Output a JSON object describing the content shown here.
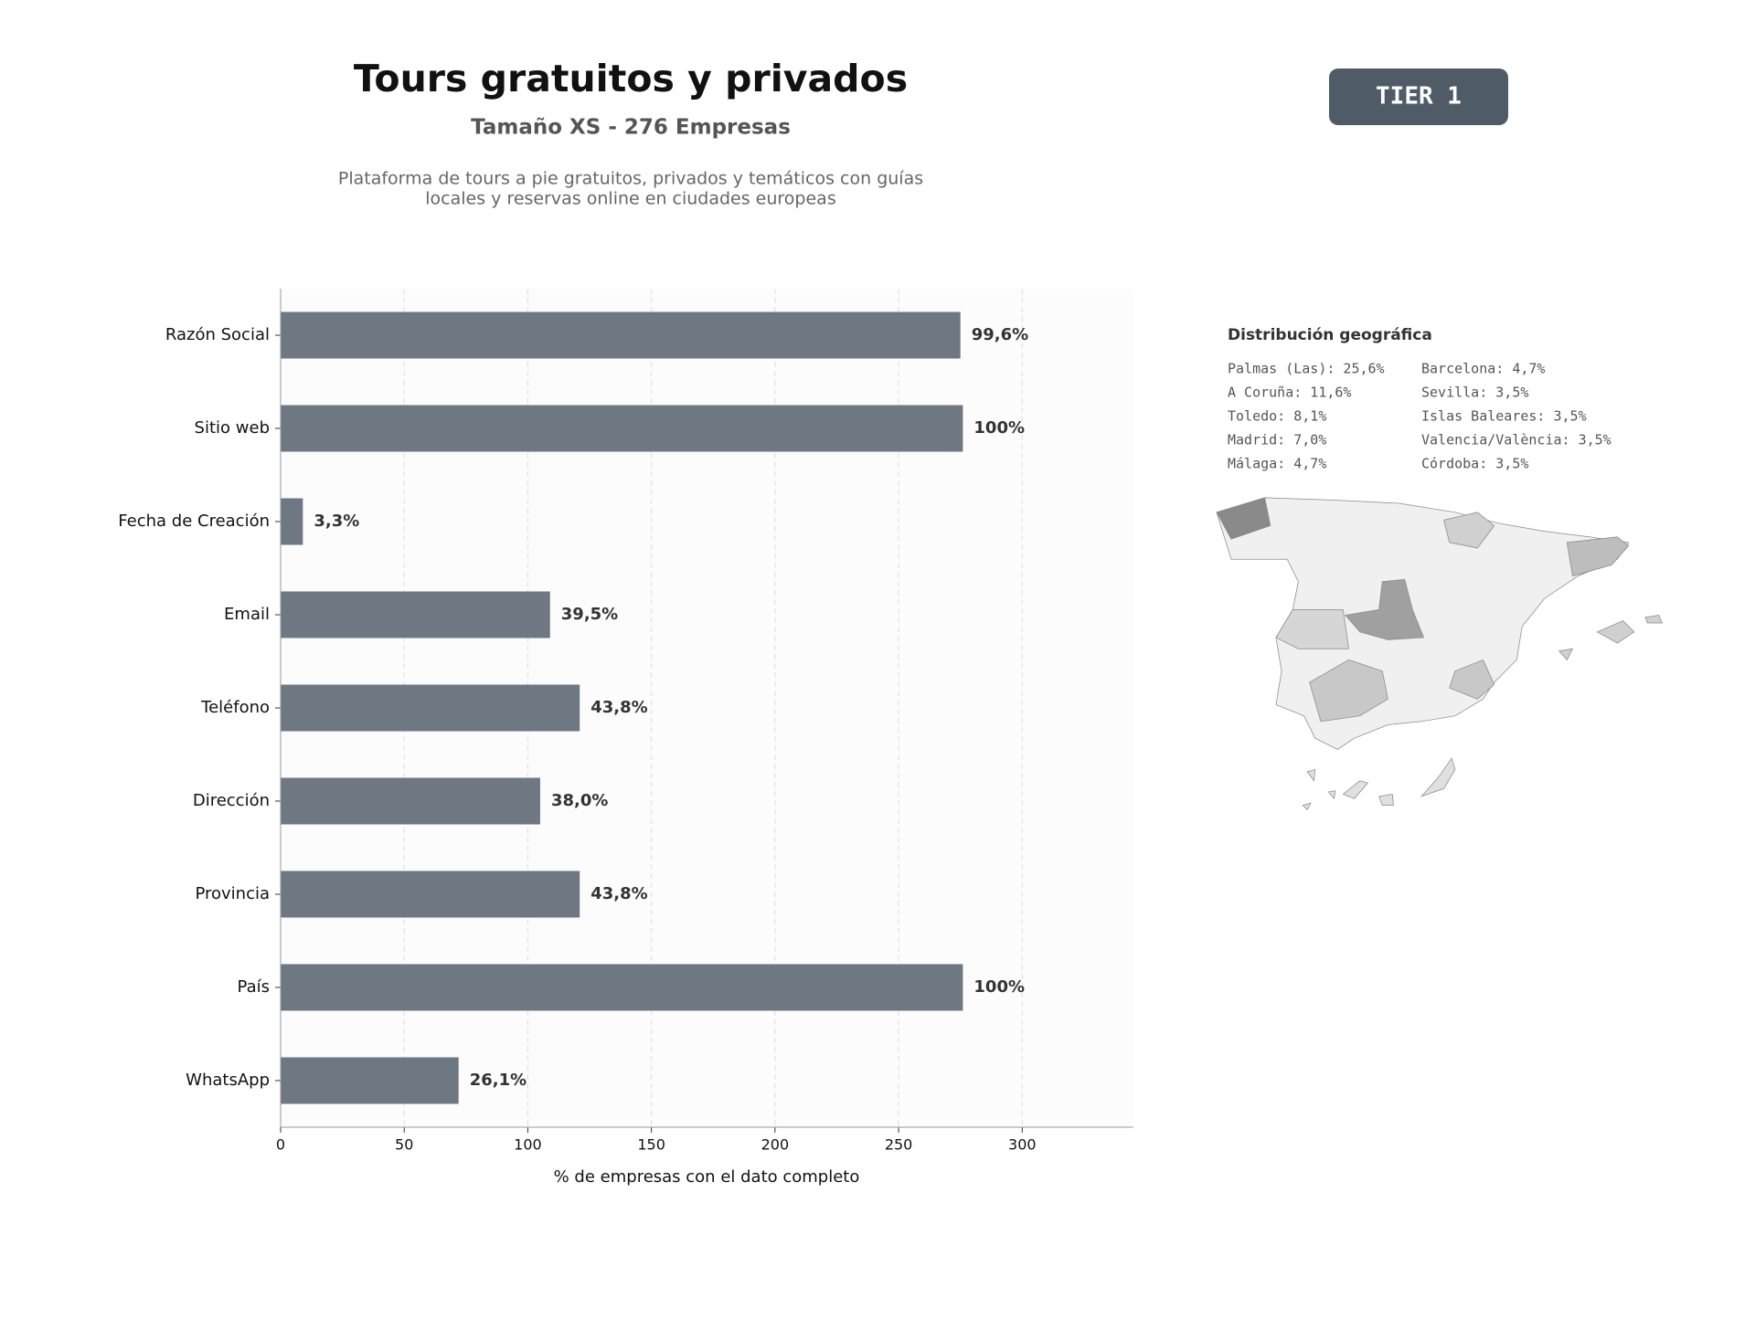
{
  "header": {
    "title": "Tours gratuitos y privados",
    "subtitle": "Tamaño XS - 276 Empresas",
    "description": [
      "Plataforma de tours a pie gratuitos, privados y temáticos con guías",
      "locales y reservas online en ciudades europeas"
    ],
    "badge": "TIER 1"
  },
  "chart_data": {
    "type": "bar",
    "orientation": "horizontal",
    "xlabel": "% de empresas con el dato completo",
    "categories": [
      "Razón Social",
      "Sitio web",
      "Fecha de Creación",
      "Email",
      "Teléfono",
      "Dirección",
      "Provincia",
      "País",
      "WhatsApp"
    ],
    "values": [
      275,
      276,
      9,
      109,
      121,
      105,
      121,
      276,
      72
    ],
    "value_labels": [
      "99,6%",
      "100%",
      "3,3%",
      "39,5%",
      "43,8%",
      "38,0%",
      "43,8%",
      "100%",
      "26,1%"
    ],
    "color": "#6e7882",
    "xlim": [
      0,
      345
    ],
    "xticks": [
      0,
      50,
      100,
      150,
      200,
      250,
      300
    ],
    "grid": true
  },
  "geo": {
    "title": "Distribución geográfica",
    "items": [
      [
        "Palmas (Las): 25,6%",
        "A Coruña: 11,6%",
        "Toledo: 8,1%",
        "Madrid: 7,0%",
        "Málaga: 4,7%"
      ],
      [
        "Barcelona: 4,7%",
        "Sevilla: 3,5%",
        "Islas Baleares: 3,5%",
        "Valencia/València: 3,5%",
        "Córdoba: 3,5%"
      ]
    ]
  }
}
